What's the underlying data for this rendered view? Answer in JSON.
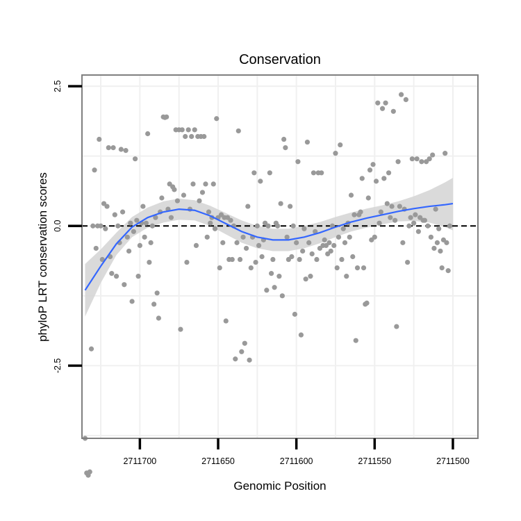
{
  "chart_data": {
    "type": "scatter",
    "title": "Conservation",
    "xlabel": "Genomic Position",
    "ylabel": "phyloP LRT conservation scores",
    "x_reversed": true,
    "xlim": [
      2711737,
      2711484
    ],
    "ylim": [
      -3.8,
      2.7
    ],
    "xticks": [
      2711700,
      2711650,
      2711600,
      2711550,
      2711500
    ],
    "xtick_labels": [
      "2711700",
      "2711650",
      "2711600",
      "2711550",
      "2711500"
    ],
    "yticks": [
      2.5,
      0.0,
      -2.5
    ],
    "ytick_labels": [
      "2.5",
      "0.0",
      "-2.5"
    ],
    "reference_line": {
      "y": 0,
      "style": "dashed"
    },
    "grid": true,
    "colors": {
      "points": "#999999",
      "smooth": "#3366ff",
      "band": "#d3d3d3",
      "border": "#7f7f7f",
      "grid": "#f0f0f0"
    },
    "points": [
      {
        "x": 2711735,
        "y": -3.8
      },
      {
        "x": 2711734,
        "y": -4.42
      },
      {
        "x": 2711733,
        "y": -4.46
      },
      {
        "x": 2711732,
        "y": -4.4
      },
      {
        "x": 2711731,
        "y": -2.2
      },
      {
        "x": 2711730,
        "y": 0.0
      },
      {
        "x": 2711729,
        "y": 1.0
      },
      {
        "x": 2711728,
        "y": -0.4
      },
      {
        "x": 2711727,
        "y": 0.0
      },
      {
        "x": 2711726,
        "y": 1.55
      },
      {
        "x": 2711725,
        "y": 0.0
      },
      {
        "x": 2711724,
        "y": -0.6
      },
      {
        "x": 2711723,
        "y": 0.4
      },
      {
        "x": 2711722,
        "y": -0.05
      },
      {
        "x": 2711721,
        "y": 0.35
      },
      {
        "x": 2711720,
        "y": 1.4
      },
      {
        "x": 2711719,
        "y": -0.55
      },
      {
        "x": 2711718,
        "y": -0.85
      },
      {
        "x": 2711717,
        "y": 1.4
      },
      {
        "x": 2711716,
        "y": 0.2
      },
      {
        "x": 2711715,
        "y": -0.9
      },
      {
        "x": 2711714,
        "y": 0.0
      },
      {
        "x": 2711713,
        "y": -0.3
      },
      {
        "x": 2711712,
        "y": 1.37
      },
      {
        "x": 2711711,
        "y": 0.25
      },
      {
        "x": 2711710,
        "y": -1.05
      },
      {
        "x": 2711709,
        "y": 1.35
      },
      {
        "x": 2711708,
        "y": -0.2
      },
      {
        "x": 2711707,
        "y": -0.45
      },
      {
        "x": 2711706,
        "y": 0.05
      },
      {
        "x": 2711705,
        "y": -1.35
      },
      {
        "x": 2711704,
        "y": -0.1
      },
      {
        "x": 2711703,
        "y": 1.2
      },
      {
        "x": 2711702,
        "y": 0.1
      },
      {
        "x": 2711701,
        "y": -0.9
      },
      {
        "x": 2711700,
        "y": -0.35
      },
      {
        "x": 2711699,
        "y": 0.05
      },
      {
        "x": 2711698,
        "y": 0.35
      },
      {
        "x": 2711697,
        "y": -0.2
      },
      {
        "x": 2711696,
        "y": 0.05
      },
      {
        "x": 2711695,
        "y": 1.65
      },
      {
        "x": 2711694,
        "y": -0.65
      },
      {
        "x": 2711693,
        "y": -0.3
      },
      {
        "x": 2711692,
        "y": 0.0
      },
      {
        "x": 2711691,
        "y": -1.4
      },
      {
        "x": 2711690,
        "y": 0.15
      },
      {
        "x": 2711689,
        "y": -1.2
      },
      {
        "x": 2711688,
        "y": -1.65
      },
      {
        "x": 2711687,
        "y": 0.25
      },
      {
        "x": 2711686,
        "y": 0.5
      },
      {
        "x": 2711685,
        "y": 1.95
      },
      {
        "x": 2711684,
        "y": 1.94
      },
      {
        "x": 2711683,
        "y": 1.95
      },
      {
        "x": 2711682,
        "y": 0.3
      },
      {
        "x": 2711681,
        "y": 0.75
      },
      {
        "x": 2711680,
        "y": 0.15
      },
      {
        "x": 2711679,
        "y": 0.7
      },
      {
        "x": 2711678,
        "y": 0.65
      },
      {
        "x": 2711677,
        "y": 1.72
      },
      {
        "x": 2711676,
        "y": 0.45
      },
      {
        "x": 2711675,
        "y": 1.72
      },
      {
        "x": 2711674,
        "y": -1.85
      },
      {
        "x": 2711673,
        "y": 1.72
      },
      {
        "x": 2711672,
        "y": 0.55
      },
      {
        "x": 2711671,
        "y": 1.6
      },
      {
        "x": 2711670,
        "y": -0.65
      },
      {
        "x": 2711669,
        "y": 1.72
      },
      {
        "x": 2711668,
        "y": 0.3
      },
      {
        "x": 2711667,
        "y": 1.6
      },
      {
        "x": 2711666,
        "y": 0.75
      },
      {
        "x": 2711665,
        "y": 1.72
      },
      {
        "x": 2711664,
        "y": -0.35
      },
      {
        "x": 2711663,
        "y": 1.6
      },
      {
        "x": 2711662,
        "y": 0.45
      },
      {
        "x": 2711661,
        "y": 1.6
      },
      {
        "x": 2711660,
        "y": 0.6
      },
      {
        "x": 2711659,
        "y": 1.6
      },
      {
        "x": 2711658,
        "y": 0.75
      },
      {
        "x": 2711657,
        "y": -0.2
      },
      {
        "x": 2711656,
        "y": 0.25
      },
      {
        "x": 2711655,
        "y": 0.05
      },
      {
        "x": 2711654,
        "y": 0.15
      },
      {
        "x": 2711653,
        "y": 0.75
      },
      {
        "x": 2711652,
        "y": -0.05
      },
      {
        "x": 2711651,
        "y": 1.92
      },
      {
        "x": 2711650,
        "y": 0.15
      },
      {
        "x": 2711649,
        "y": -0.75
      },
      {
        "x": 2711648,
        "y": 0.2
      },
      {
        "x": 2711647,
        "y": -0.3
      },
      {
        "x": 2711646,
        "y": 0.15
      },
      {
        "x": 2711645,
        "y": -1.7
      },
      {
        "x": 2711644,
        "y": 0.15
      },
      {
        "x": 2711643,
        "y": -0.6
      },
      {
        "x": 2711642,
        "y": 0.1
      },
      {
        "x": 2711641,
        "y": -0.6
      },
      {
        "x": 2711640,
        "y": 0.0
      },
      {
        "x": 2711639,
        "y": -2.38
      },
      {
        "x": 2711638,
        "y": -0.3
      },
      {
        "x": 2711637,
        "y": 1.7
      },
      {
        "x": 2711636,
        "y": -0.6
      },
      {
        "x": 2711635,
        "y": -2.25
      },
      {
        "x": 2711634,
        "y": -0.2
      },
      {
        "x": 2711633,
        "y": -2.1
      },
      {
        "x": 2711632,
        "y": -0.4
      },
      {
        "x": 2711631,
        "y": 0.35
      },
      {
        "x": 2711630,
        "y": -2.4
      },
      {
        "x": 2711629,
        "y": -0.75
      },
      {
        "x": 2711628,
        "y": -0.2
      },
      {
        "x": 2711627,
        "y": 0.95
      },
      {
        "x": 2711626,
        "y": -0.65
      },
      {
        "x": 2711625,
        "y": 0.0
      },
      {
        "x": 2711624,
        "y": -0.35
      },
      {
        "x": 2711623,
        "y": 0.8
      },
      {
        "x": 2711622,
        "y": -0.55
      },
      {
        "x": 2711621,
        "y": -0.25
      },
      {
        "x": 2711620,
        "y": 0.05
      },
      {
        "x": 2711619,
        "y": -1.15
      },
      {
        "x": 2711618,
        "y": 0.0
      },
      {
        "x": 2711617,
        "y": 0.95
      },
      {
        "x": 2711616,
        "y": -0.85
      },
      {
        "x": 2711615,
        "y": -0.6
      },
      {
        "x": 2711614,
        "y": -1.1
      },
      {
        "x": 2711613,
        "y": 0.05
      },
      {
        "x": 2711612,
        "y": 0.0
      },
      {
        "x": 2711611,
        "y": -0.9
      },
      {
        "x": 2711610,
        "y": 0.4
      },
      {
        "x": 2711609,
        "y": -1.25
      },
      {
        "x": 2711608,
        "y": 1.55
      },
      {
        "x": 2711607,
        "y": 1.4
      },
      {
        "x": 2711606,
        "y": -0.2
      },
      {
        "x": 2711605,
        "y": -0.6
      },
      {
        "x": 2711604,
        "y": 0.35
      },
      {
        "x": 2711603,
        "y": -0.55
      },
      {
        "x": 2711602,
        "y": 0.0
      },
      {
        "x": 2711601,
        "y": -1.58
      },
      {
        "x": 2711600,
        "y": -0.3
      },
      {
        "x": 2711599,
        "y": 1.15
      },
      {
        "x": 2711598,
        "y": -0.6
      },
      {
        "x": 2711597,
        "y": -1.95
      },
      {
        "x": 2711596,
        "y": -0.45
      },
      {
        "x": 2711595,
        "y": -0.05
      },
      {
        "x": 2711594,
        "y": -0.95
      },
      {
        "x": 2711593,
        "y": 1.5
      },
      {
        "x": 2711592,
        "y": -0.3
      },
      {
        "x": 2711591,
        "y": -0.9
      },
      {
        "x": 2711590,
        "y": -0.5
      },
      {
        "x": 2711589,
        "y": 0.95
      },
      {
        "x": 2711588,
        "y": -0.1
      },
      {
        "x": 2711587,
        "y": -0.6
      },
      {
        "x": 2711586,
        "y": 0.95
      },
      {
        "x": 2711585,
        "y": -0.4
      },
      {
        "x": 2711584,
        "y": 0.95
      },
      {
        "x": 2711583,
        "y": -0.35
      },
      {
        "x": 2711582,
        "y": -0.25
      },
      {
        "x": 2711581,
        "y": -0.35
      },
      {
        "x": 2711580,
        "y": -0.5
      },
      {
        "x": 2711579,
        "y": -0.3
      },
      {
        "x": 2711578,
        "y": -0.45
      },
      {
        "x": 2711577,
        "y": 0.0
      },
      {
        "x": 2711576,
        "y": -0.35
      },
      {
        "x": 2711575,
        "y": 1.3
      },
      {
        "x": 2711574,
        "y": -0.75
      },
      {
        "x": 2711573,
        "y": -0.2
      },
      {
        "x": 2711572,
        "y": 1.45
      },
      {
        "x": 2711571,
        "y": -0.6
      },
      {
        "x": 2711570,
        "y": -0.05
      },
      {
        "x": 2711569,
        "y": -0.3
      },
      {
        "x": 2711568,
        "y": -0.9
      },
      {
        "x": 2711567,
        "y": 0.05
      },
      {
        "x": 2711566,
        "y": -0.2
      },
      {
        "x": 2711565,
        "y": 0.55
      },
      {
        "x": 2711564,
        "y": -0.55
      },
      {
        "x": 2711563,
        "y": 0.2
      },
      {
        "x": 2711562,
        "y": -2.05
      },
      {
        "x": 2711561,
        "y": -0.75
      },
      {
        "x": 2711560,
        "y": 0.2
      },
      {
        "x": 2711559,
        "y": 0.25
      },
      {
        "x": 2711558,
        "y": 0.85
      },
      {
        "x": 2711557,
        "y": -0.75
      },
      {
        "x": 2711556,
        "y": -1.4
      },
      {
        "x": 2711555,
        "y": -1.38
      },
      {
        "x": 2711554,
        "y": 0.5
      },
      {
        "x": 2711553,
        "y": 1.0
      },
      {
        "x": 2711552,
        "y": -0.25
      },
      {
        "x": 2711551,
        "y": 1.1
      },
      {
        "x": 2711550,
        "y": -0.2
      },
      {
        "x": 2711549,
        "y": 0.8
      },
      {
        "x": 2711548,
        "y": 2.2
      },
      {
        "x": 2711547,
        "y": 0.05
      },
      {
        "x": 2711546,
        "y": 0.25
      },
      {
        "x": 2711545,
        "y": 2.1
      },
      {
        "x": 2711544,
        "y": 0.85
      },
      {
        "x": 2711543,
        "y": 2.2
      },
      {
        "x": 2711542,
        "y": 0.4
      },
      {
        "x": 2711541,
        "y": 0.95
      },
      {
        "x": 2711540,
        "y": 0.15
      },
      {
        "x": 2711539,
        "y": 0.35
      },
      {
        "x": 2711538,
        "y": 2.05
      },
      {
        "x": 2711537,
        "y": 0.1
      },
      {
        "x": 2711536,
        "y": -1.8
      },
      {
        "x": 2711535,
        "y": 1.15
      },
      {
        "x": 2711534,
        "y": 0.35
      },
      {
        "x": 2711533,
        "y": 2.35
      },
      {
        "x": 2711532,
        "y": -0.3
      },
      {
        "x": 2711531,
        "y": 0.3
      },
      {
        "x": 2711530,
        "y": 2.26
      },
      {
        "x": 2711529,
        "y": -0.65
      },
      {
        "x": 2711528,
        "y": 0.0
      },
      {
        "x": 2711527,
        "y": 0.15
      },
      {
        "x": 2711526,
        "y": 1.2
      },
      {
        "x": 2711525,
        "y": 0.05
      },
      {
        "x": 2711524,
        "y": 0.2
      },
      {
        "x": 2711523,
        "y": 1.2
      },
      {
        "x": 2711522,
        "y": -0.1
      },
      {
        "x": 2711521,
        "y": 0.15
      },
      {
        "x": 2711520,
        "y": 1.15
      },
      {
        "x": 2711519,
        "y": 0.1
      },
      {
        "x": 2711518,
        "y": 0.1
      },
      {
        "x": 2711517,
        "y": 1.15
      },
      {
        "x": 2711516,
        "y": 0.0
      },
      {
        "x": 2711515,
        "y": 1.2
      },
      {
        "x": 2711514,
        "y": -0.2
      },
      {
        "x": 2711513,
        "y": 1.27
      },
      {
        "x": 2711512,
        "y": -0.4
      },
      {
        "x": 2711511,
        "y": 0.3
      },
      {
        "x": 2711510,
        "y": -0.3
      },
      {
        "x": 2711509,
        "y": -0.05
      },
      {
        "x": 2711508,
        "y": -0.45
      },
      {
        "x": 2711507,
        "y": -0.75
      },
      {
        "x": 2711506,
        "y": -0.25
      },
      {
        "x": 2711505,
        "y": 1.3
      },
      {
        "x": 2711504,
        "y": -0.3
      },
      {
        "x": 2711503,
        "y": -0.8
      },
      {
        "x": 2711502,
        "y": 0.0
      }
    ],
    "smooth": [
      {
        "x": 2711735,
        "y": -1.15,
        "lo": -1.62,
        "hi": -0.68
      },
      {
        "x": 2711725,
        "y": -0.72,
        "lo": -1.02,
        "hi": -0.42
      },
      {
        "x": 2711715,
        "y": -0.32,
        "lo": -0.52,
        "hi": -0.12
      },
      {
        "x": 2711705,
        "y": -0.02,
        "lo": -0.2,
        "hi": 0.16
      },
      {
        "x": 2711695,
        "y": 0.15,
        "lo": -0.03,
        "hi": 0.33
      },
      {
        "x": 2711685,
        "y": 0.25,
        "lo": 0.06,
        "hi": 0.44
      },
      {
        "x": 2711675,
        "y": 0.3,
        "lo": 0.11,
        "hi": 0.49
      },
      {
        "x": 2711665,
        "y": 0.28,
        "lo": 0.1,
        "hi": 0.46
      },
      {
        "x": 2711655,
        "y": 0.18,
        "lo": 0.0,
        "hi": 0.36
      },
      {
        "x": 2711645,
        "y": 0.04,
        "lo": -0.15,
        "hi": 0.23
      },
      {
        "x": 2711635,
        "y": -0.1,
        "lo": -0.3,
        "hi": 0.1
      },
      {
        "x": 2711625,
        "y": -0.2,
        "lo": -0.4,
        "hi": 0.0
      },
      {
        "x": 2711615,
        "y": -0.25,
        "lo": -0.45,
        "hi": -0.05
      },
      {
        "x": 2711605,
        "y": -0.25,
        "lo": -0.45,
        "hi": -0.05
      },
      {
        "x": 2711595,
        "y": -0.2,
        "lo": -0.4,
        "hi": 0.0
      },
      {
        "x": 2711585,
        "y": -0.12,
        "lo": -0.31,
        "hi": 0.07
      },
      {
        "x": 2711575,
        "y": -0.02,
        "lo": -0.2,
        "hi": 0.16
      },
      {
        "x": 2711565,
        "y": 0.07,
        "lo": -0.1,
        "hi": 0.24
      },
      {
        "x": 2711555,
        "y": 0.14,
        "lo": -0.03,
        "hi": 0.31
      },
      {
        "x": 2711545,
        "y": 0.2,
        "lo": 0.03,
        "hi": 0.37
      },
      {
        "x": 2711535,
        "y": 0.26,
        "lo": 0.08,
        "hi": 0.44
      },
      {
        "x": 2711525,
        "y": 0.31,
        "lo": 0.09,
        "hi": 0.53
      },
      {
        "x": 2711515,
        "y": 0.35,
        "lo": 0.06,
        "hi": 0.64
      },
      {
        "x": 2711505,
        "y": 0.38,
        "lo": -0.02,
        "hi": 0.78
      },
      {
        "x": 2711500,
        "y": 0.4,
        "lo": -0.08,
        "hi": 0.86
      }
    ]
  }
}
